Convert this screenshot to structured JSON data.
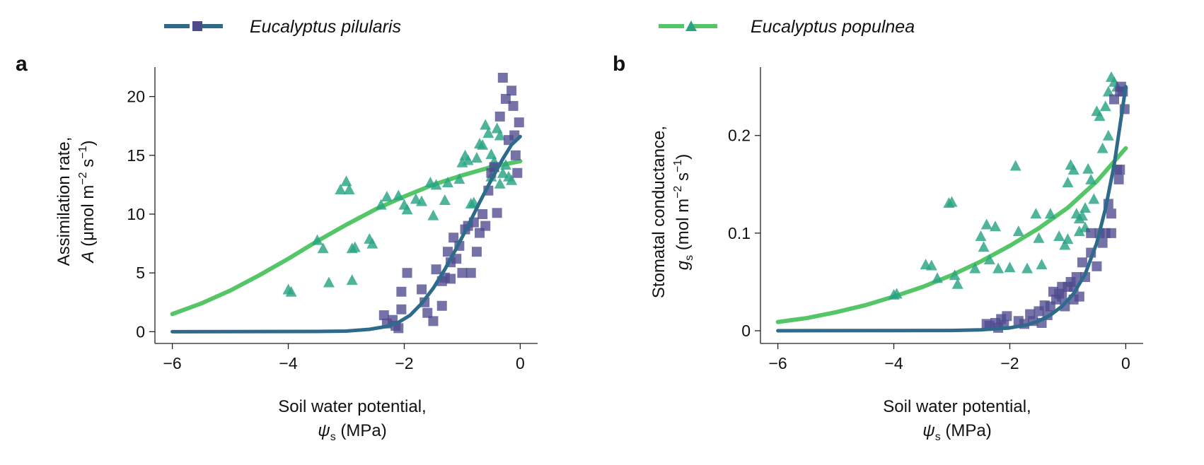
{
  "legend": [
    {
      "name": "Eucalyptus pilularis",
      "color": "#2E6B8A",
      "marker": "square",
      "marker_color": "#4E4A8E"
    },
    {
      "name": "Eucalyptus populnea",
      "color": "#55C667",
      "marker": "triangle",
      "marker_color": "#2AA384"
    }
  ],
  "panels": [
    {
      "label": "a"
    },
    {
      "label": "b"
    }
  ],
  "chart_data": [
    {
      "type": "scatter",
      "panel": "a",
      "xlabel": "Soil water potential,",
      "xlabel_math": "ψ",
      "xlabel_sub": "s",
      "xlabel_unit": "(MPa)",
      "ylabel_line1": "Assimilation rate,",
      "ylabel_var": "A",
      "ylabel_unit_pre": "(μmol m",
      "ylabel_sup1": "−2",
      "ylabel_mid": " s",
      "ylabel_sup2": "−1",
      "ylabel_post": ")",
      "xlim": [
        -6.3,
        0.3
      ],
      "ylim": [
        -1.0,
        22.5
      ],
      "xticks": [
        -6,
        -4,
        -2,
        0
      ],
      "xtick_labels": [
        "−6",
        "−4",
        "−2",
        "0"
      ],
      "yticks": [
        0,
        5,
        10,
        15,
        20
      ],
      "ytick_labels": [
        "0",
        "5",
        "10",
        "15",
        "20"
      ],
      "series": [
        {
          "name": "Eucalyptus pilularis",
          "points": [
            [
              -2.35,
              1.4
            ],
            [
              -2.3,
              0.7
            ],
            [
              -2.2,
              1.0
            ],
            [
              -2.15,
              0.5
            ],
            [
              -2.1,
              0.3
            ],
            [
              -2.05,
              1.9
            ],
            [
              -2.05,
              3.4
            ],
            [
              -1.95,
              5.0
            ],
            [
              -1.7,
              3.6
            ],
            [
              -1.65,
              2.5
            ],
            [
              -1.6,
              1.6
            ],
            [
              -1.5,
              0.9
            ],
            [
              -1.45,
              5.3
            ],
            [
              -1.35,
              4.3
            ],
            [
              -1.3,
              4.6
            ],
            [
              -1.25,
              6.8
            ],
            [
              -1.2,
              5.9
            ],
            [
              -1.2,
              4.5
            ],
            [
              -1.15,
              8.0
            ],
            [
              -1.1,
              6.2
            ],
            [
              -1.05,
              7.3
            ],
            [
              -1.0,
              5.0
            ],
            [
              -0.95,
              8.7
            ],
            [
              -0.9,
              9.0
            ],
            [
              -0.85,
              5.0
            ],
            [
              -0.8,
              9.3
            ],
            [
              -0.75,
              6.8
            ],
            [
              -0.7,
              8.4
            ],
            [
              -0.65,
              10.0
            ],
            [
              -0.6,
              9.0
            ],
            [
              -0.55,
              12.0
            ],
            [
              -0.5,
              13.5
            ],
            [
              -0.45,
              14.0
            ],
            [
              -0.4,
              10.1
            ],
            [
              -0.35,
              18.3
            ],
            [
              -0.3,
              21.6
            ],
            [
              -0.25,
              19.8
            ],
            [
              -0.2,
              16.3
            ],
            [
              -0.15,
              20.5
            ],
            [
              -0.12,
              19.2
            ],
            [
              -0.1,
              16.7
            ],
            [
              -0.08,
              15.0
            ],
            [
              -0.05,
              13.5
            ],
            [
              -0.02,
              17.8
            ],
            [
              -1.35,
              2.2
            ]
          ],
          "fit": [
            [
              -6,
              0
            ],
            [
              -3.5,
              0.02
            ],
            [
              -3,
              0.05
            ],
            [
              -2.6,
              0.2
            ],
            [
              -2.3,
              0.45
            ],
            [
              -2.1,
              0.8
            ],
            [
              -1.9,
              1.4
            ],
            [
              -1.7,
              2.4
            ],
            [
              -1.5,
              3.7
            ],
            [
              -1.3,
              5.3
            ],
            [
              -1.1,
              7.1
            ],
            [
              -0.9,
              9.0
            ],
            [
              -0.7,
              11.0
            ],
            [
              -0.5,
              12.9
            ],
            [
              -0.3,
              14.7
            ],
            [
              -0.15,
              15.9
            ],
            [
              0,
              16.6
            ]
          ]
        },
        {
          "name": "Eucalyptus populnea",
          "points": [
            [
              -4.0,
              3.6
            ],
            [
              -3.95,
              3.4
            ],
            [
              -3.5,
              7.8
            ],
            [
              -3.4,
              7.1
            ],
            [
              -3.3,
              4.2
            ],
            [
              -3.1,
              12.1
            ],
            [
              -3.0,
              12.8
            ],
            [
              -2.95,
              12.1
            ],
            [
              -2.9,
              7.1
            ],
            [
              -2.85,
              7.2
            ],
            [
              -2.9,
              4.4
            ],
            [
              -2.6,
              7.9
            ],
            [
              -2.55,
              7.5
            ],
            [
              -2.4,
              10.8
            ],
            [
              -2.3,
              11.5
            ],
            [
              -2.1,
              11.6
            ],
            [
              -2.0,
              10.8
            ],
            [
              -1.95,
              10.4
            ],
            [
              -1.8,
              11.3
            ],
            [
              -1.7,
              11.1
            ],
            [
              -1.55,
              12.7
            ],
            [
              -1.5,
              9.9
            ],
            [
              -1.45,
              12.5
            ],
            [
              -1.3,
              11.2
            ],
            [
              -1.25,
              12.7
            ],
            [
              -1.05,
              13.0
            ],
            [
              -1.0,
              14.4
            ],
            [
              -0.95,
              15.0
            ],
            [
              -0.9,
              14.6
            ],
            [
              -0.85,
              10.9
            ],
            [
              -0.8,
              11.0
            ],
            [
              -0.75,
              14.8
            ],
            [
              -0.7,
              16.0
            ],
            [
              -0.65,
              15.9
            ],
            [
              -0.6,
              17.6
            ],
            [
              -0.55,
              16.9
            ],
            [
              -0.5,
              15.1
            ],
            [
              -0.5,
              13.2
            ],
            [
              -0.45,
              14.0
            ],
            [
              -0.4,
              17.3
            ],
            [
              -0.35,
              16.7
            ],
            [
              -0.3,
              13.5
            ],
            [
              -0.25,
              14.2
            ],
            [
              -0.2,
              13.2
            ],
            [
              -0.15,
              12.9
            ],
            [
              -0.45,
              14.5
            ],
            [
              -0.35,
              12.6
            ]
          ],
          "fit": [
            [
              -6,
              1.5
            ],
            [
              -5.5,
              2.4
            ],
            [
              -5,
              3.5
            ],
            [
              -4.5,
              4.8
            ],
            [
              -4,
              6.2
            ],
            [
              -3.5,
              7.7
            ],
            [
              -3,
              9.1
            ],
            [
              -2.5,
              10.4
            ],
            [
              -2,
              11.5
            ],
            [
              -1.5,
              12.5
            ],
            [
              -1,
              13.3
            ],
            [
              -0.5,
              14.0
            ],
            [
              0,
              14.5
            ]
          ]
        }
      ]
    },
    {
      "type": "scatter",
      "panel": "b",
      "xlabel": "Soil water potential,",
      "xlabel_math": "ψ",
      "xlabel_sub": "s",
      "xlabel_unit": "(MPa)",
      "ylabel_line1": "Stomatal conductance,",
      "ylabel_var": "g",
      "ylabel_var_sub": "s",
      "ylabel_unit_pre": "(mol m",
      "ylabel_sup1": "−2",
      "ylabel_mid": " s",
      "ylabel_sup2": "−1",
      "ylabel_post": ")",
      "xlim": [
        -6.3,
        0.3
      ],
      "ylim": [
        -0.013,
        0.27
      ],
      "xticks": [
        -6,
        -4,
        -2,
        0
      ],
      "xtick_labels": [
        "−6",
        "−4",
        "−2",
        "0"
      ],
      "yticks": [
        0,
        0.1,
        0.2
      ],
      "ytick_labels": [
        "0",
        "0.1",
        "0.2"
      ],
      "series": [
        {
          "name": "Eucalyptus pilularis",
          "points": [
            [
              -2.4,
              0.007
            ],
            [
              -2.35,
              0.005
            ],
            [
              -2.25,
              0.008
            ],
            [
              -2.2,
              0.003
            ],
            [
              -2.15,
              0.012
            ],
            [
              -2.1,
              0.006
            ],
            [
              -2.05,
              0.015
            ],
            [
              -1.85,
              0.01
            ],
            [
              -1.75,
              0.007
            ],
            [
              -1.65,
              0.017
            ],
            [
              -1.6,
              0.01
            ],
            [
              -1.5,
              0.02
            ],
            [
              -1.45,
              0.008
            ],
            [
              -1.4,
              0.026
            ],
            [
              -1.35,
              0.016
            ],
            [
              -1.3,
              0.025
            ],
            [
              -1.25,
              0.04
            ],
            [
              -1.2,
              0.032
            ],
            [
              -1.15,
              0.038
            ],
            [
              -1.1,
              0.035
            ],
            [
              -1.05,
              0.025
            ],
            [
              -1.0,
              0.045
            ],
            [
              -0.95,
              0.05
            ],
            [
              -0.9,
              0.032
            ],
            [
              -0.85,
              0.055
            ],
            [
              -0.8,
              0.035
            ],
            [
              -0.75,
              0.07
            ],
            [
              -0.7,
              0.055
            ],
            [
              -0.6,
              0.08
            ],
            [
              -0.5,
              0.066
            ],
            [
              -0.45,
              0.1
            ],
            [
              -0.4,
              0.09
            ],
            [
              -0.35,
              0.1
            ],
            [
              -0.3,
              0.13
            ],
            [
              -0.25,
              0.12
            ],
            [
              -0.2,
              0.237
            ],
            [
              -0.15,
              0.165
            ],
            [
              -0.12,
              0.155
            ],
            [
              -0.1,
              0.245
            ],
            [
              -0.08,
              0.25
            ],
            [
              -0.05,
              0.245
            ],
            [
              -0.02,
              0.227
            ],
            [
              -0.1,
              0.165
            ],
            [
              -0.25,
              0.1
            ],
            [
              -1.1,
              0.045
            ],
            [
              -0.9,
              0.045
            ],
            [
              -0.6,
              0.1
            ]
          ],
          "fit": [
            [
              -6,
              0
            ],
            [
              -3,
              0.0003
            ],
            [
              -2.5,
              0.001
            ],
            [
              -2,
              0.003
            ],
            [
              -1.7,
              0.006
            ],
            [
              -1.5,
              0.01
            ],
            [
              -1.3,
              0.016
            ],
            [
              -1.1,
              0.025
            ],
            [
              -0.9,
              0.038
            ],
            [
              -0.7,
              0.058
            ],
            [
              -0.5,
              0.09
            ],
            [
              -0.35,
              0.125
            ],
            [
              -0.2,
              0.17
            ],
            [
              -0.1,
              0.21
            ],
            [
              0,
              0.25
            ]
          ]
        },
        {
          "name": "Eucalyptus populnea",
          "points": [
            [
              -4.0,
              0.037
            ],
            [
              -3.95,
              0.038
            ],
            [
              -3.45,
              0.068
            ],
            [
              -3.35,
              0.067
            ],
            [
              -3.25,
              0.054
            ],
            [
              -3.05,
              0.131
            ],
            [
              -3.0,
              0.132
            ],
            [
              -2.95,
              0.057
            ],
            [
              -2.9,
              0.048
            ],
            [
              -2.6,
              0.064
            ],
            [
              -2.5,
              0.097
            ],
            [
              -2.45,
              0.086
            ],
            [
              -2.4,
              0.109
            ],
            [
              -2.35,
              0.073
            ],
            [
              -2.25,
              0.107
            ],
            [
              -2.2,
              0.064
            ],
            [
              -2.0,
              0.065
            ],
            [
              -1.9,
              0.169
            ],
            [
              -1.85,
              0.102
            ],
            [
              -1.7,
              0.064
            ],
            [
              -1.55,
              0.12
            ],
            [
              -1.5,
              0.095
            ],
            [
              -1.45,
              0.068
            ],
            [
              -1.3,
              0.12
            ],
            [
              -1.15,
              0.097
            ],
            [
              -1.05,
              0.088
            ],
            [
              -1.0,
              0.152
            ],
            [
              -0.95,
              0.17
            ],
            [
              -0.9,
              0.165
            ],
            [
              -0.85,
              0.12
            ],
            [
              -0.8,
              0.115
            ],
            [
              -0.75,
              0.118
            ],
            [
              -0.7,
              0.126
            ],
            [
              -0.65,
              0.166
            ],
            [
              -0.6,
              0.155
            ],
            [
              -0.55,
              0.135
            ],
            [
              -0.5,
              0.225
            ],
            [
              -0.45,
              0.22
            ],
            [
              -0.4,
              0.187
            ],
            [
              -0.35,
              0.23
            ],
            [
              -0.3,
              0.245
            ],
            [
              -0.25,
              0.26
            ],
            [
              -0.2,
              0.255
            ],
            [
              -0.15,
              0.25
            ],
            [
              -0.8,
              0.102
            ],
            [
              -0.7,
              0.106
            ],
            [
              -1.0,
              0.094
            ],
            [
              -0.3,
              0.2
            ]
          ],
          "fit": [
            [
              -6,
              0.009
            ],
            [
              -5.5,
              0.013
            ],
            [
              -5,
              0.019
            ],
            [
              -4.5,
              0.026
            ],
            [
              -4,
              0.035
            ],
            [
              -3.5,
              0.045
            ],
            [
              -3,
              0.057
            ],
            [
              -2.5,
              0.071
            ],
            [
              -2,
              0.087
            ],
            [
              -1.5,
              0.105
            ],
            [
              -1,
              0.126
            ],
            [
              -0.5,
              0.153
            ],
            [
              0,
              0.187
            ]
          ]
        }
      ]
    }
  ]
}
